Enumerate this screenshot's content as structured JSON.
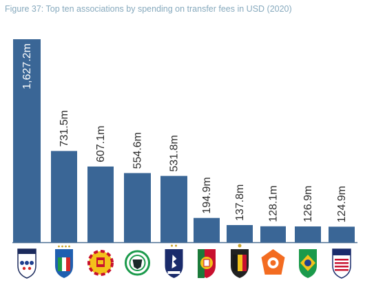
{
  "title": "Figure 37: Top ten associations by spending on transfer fees in USD (2020)",
  "bar_color": "#3a6696",
  "chart_data": {
    "type": "bar",
    "title": "Figure 37: Top ten associations by spending on transfer fees in USD (2020)",
    "unit": "USD million",
    "categories": [
      "England (The FA)",
      "Italy (FIGC)",
      "Spain (RFEF)",
      "Germany (DFB)",
      "France (FFF)",
      "Portugal (FPF)",
      "Belgium (RBFA)",
      "Netherlands (KNVB)",
      "Brazil (CBF)",
      "USA (US Soccer)"
    ],
    "values": [
      1627.2,
      731.5,
      607.1,
      554.6,
      531.8,
      194.9,
      137.8,
      128.1,
      126.9,
      124.9
    ],
    "labels": [
      "1,627.2m",
      "731.5m",
      "607.1m",
      "554.6m",
      "531.8m",
      "194.9m",
      "137.8m",
      "128.1m",
      "126.9m",
      "124.9m"
    ],
    "ylim": [
      0,
      1627.2
    ],
    "grid": false,
    "legend": "none",
    "x_tick_icons": [
      "england-fa-crest-icon",
      "italy-figc-crest-icon",
      "spain-rfef-crest-icon",
      "germany-dfb-crest-icon",
      "france-fff-crest-icon",
      "portugal-fpf-crest-icon",
      "belgium-rbfa-crest-icon",
      "netherlands-knvb-crest-icon",
      "brazil-cbf-crest-icon",
      "usa-soccer-crest-icon"
    ]
  }
}
